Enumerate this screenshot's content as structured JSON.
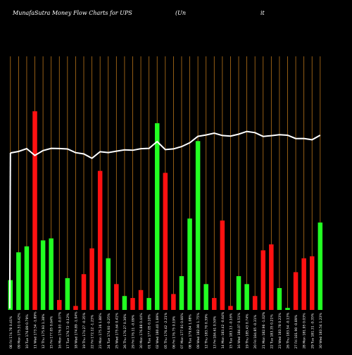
{
  "header": {
    "title": "MunafaSutra  Money Flow  Charts for UPS",
    "subtitle": "(Un",
    "subtitle_tail": "it"
  },
  "colors": {
    "background": "#000000",
    "up_bar": "#22ff22",
    "down_bar": "#ff1111",
    "gridline": "#b8741a",
    "line": "#ffffff",
    "label": "#ffffff"
  },
  "chart_data": {
    "type": "bar",
    "title": "MunafaSutra  Money Flow  Charts for UPS",
    "y_range": [
      0,
      100
    ],
    "categories": [
      "08 Fri 174.78 0.41%",
      "09 Mon 175.51 0.42%",
      "10 Tue 176.89 0.79%",
      "11 Wed 173.54 -1.89%",
      "12 Thu 175.93 1.38%",
      "15 Fri 177.05 0.64%",
      "16 Mon 176.93 -0.07%",
      "17 Tue 176.72 -0.12%",
      "18 Wed 174.89 -1.04%",
      "19 Thu 174.27 -0.35%",
      "22 Fri 172.12 -1.23%",
      "23 Mon 175.36 1.88%",
      "24 Tue 174.93 -0.25%",
      "25 Wed 175.64 0.41%",
      "26 Thu 176.27 0.36%",
      "29 Fri 176.11 -0.09%",
      "30 Mon 176.88 0.44%",
      "01 Tue 177.05 0.10%",
      "02 Wed 180.40 1.89%",
      "05 Thu 176.42 -2.21%",
      "06 Fri 176.75 0.19%",
      "07 Mon 177.91 0.66%",
      "08 Tue 179.84 1.08%",
      "09 Wed 182.99 1.75%",
      "12 Thu 183.70 0.39%",
      "13 Fri 184.61 0.50%",
      "14 Mon 183.42 -0.64%",
      "15 Tue 183.13 -0.16%",
      "16 Wed 184.07 0.51%",
      "19 Thu 185.43 0.74%",
      "20 Fri 184.85 -0.31%",
      "21 Mon 182.96 -1.02%",
      "22 Tue 183.35 0.21%",
      "23 Wed 183.78 0.23%",
      "26 Thu 183.54 -0.13%",
      "27 Fri 181.90 -0.89%",
      "28 Mon 181.95 0.03%",
      "29 Tue 181.31 -0.35%",
      "30 Wed 183.54 1.23%"
    ],
    "series": [
      {
        "kind": "bars",
        "values": [
          15,
          29,
          32,
          100,
          35,
          36,
          5,
          16,
          2,
          18,
          31,
          70,
          26,
          13,
          7,
          6,
          10,
          6,
          94,
          69,
          8,
          17,
          46,
          85,
          13,
          6,
          45,
          2,
          17,
          13,
          7,
          30,
          33,
          11,
          1,
          19,
          26,
          27,
          44
        ],
        "colors": [
          "up",
          "up",
          "up",
          "down",
          "up",
          "up",
          "down",
          "up",
          "down",
          "down",
          "down",
          "down",
          "up",
          "down",
          "up",
          "down",
          "down",
          "up",
          "up",
          "down",
          "down",
          "up",
          "up",
          "up",
          "up",
          "down",
          "down",
          "down",
          "up",
          "up",
          "down",
          "down",
          "down",
          "up",
          "up",
          "down",
          "down",
          "down",
          "up"
        ]
      },
      {
        "kind": "line",
        "values": [
          174.78,
          175.51,
          176.89,
          173.54,
          175.93,
          177.05,
          176.93,
          176.72,
          174.89,
          174.27,
          172.12,
          175.36,
          174.93,
          175.64,
          176.27,
          176.11,
          176.88,
          177.05,
          180.4,
          176.42,
          176.75,
          177.91,
          179.84,
          182.99,
          183.7,
          184.61,
          183.42,
          183.13,
          184.07,
          185.43,
          184.85,
          182.96,
          183.35,
          183.78,
          183.54,
          181.9,
          181.95,
          181.31,
          183.54
        ]
      }
    ],
    "line_range": [
      140,
      195
    ],
    "grid": "vertical"
  }
}
